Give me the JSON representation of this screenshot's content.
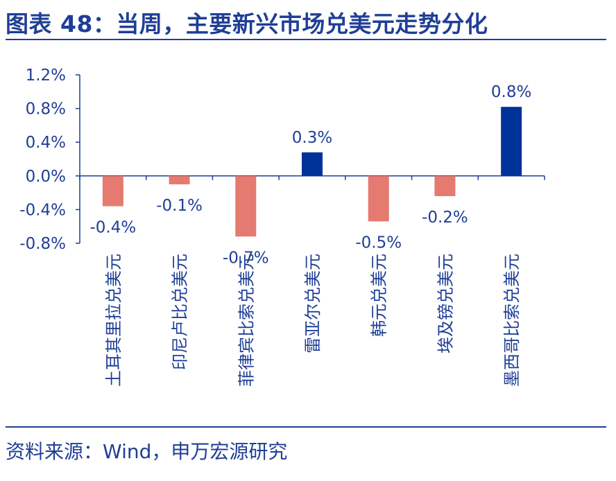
{
  "header": {
    "title": "图表 48：当周，主要新兴市场兑美元走势分化"
  },
  "footer": {
    "source": "资料来源：Wind，申万宏源研究"
  },
  "colors": {
    "title": "#1f3e96",
    "positive": "#003399",
    "negative": "#e57a70",
    "axis": "#1f3e96"
  },
  "chart_data": {
    "type": "bar",
    "title": "当周，主要新兴市场兑美元走势分化",
    "xlabel": "",
    "ylabel": "",
    "ylim": [
      -0.8,
      1.2
    ],
    "yticks": [
      "1.2%",
      "0.8%",
      "0.4%",
      "0.0%",
      "-0.4%",
      "-0.8%"
    ],
    "ytick_values": [
      1.2,
      0.8,
      0.4,
      0.0,
      -0.4,
      -0.8
    ],
    "categories": [
      "土耳其里拉兑美元",
      "印尼卢比兑美元",
      "菲律宾比索兑美元",
      "雷亚尔兑美元",
      "韩元兑美元",
      "埃及镑兑美元",
      "墨西哥比索兑美元"
    ],
    "values": [
      -0.36,
      -0.1,
      -0.72,
      0.28,
      -0.54,
      -0.24,
      0.82
    ],
    "data_labels": [
      "-0.4%",
      "-0.1%",
      "-0.7%",
      "0.3%",
      "-0.5%",
      "-0.2%",
      "0.8%"
    ]
  }
}
